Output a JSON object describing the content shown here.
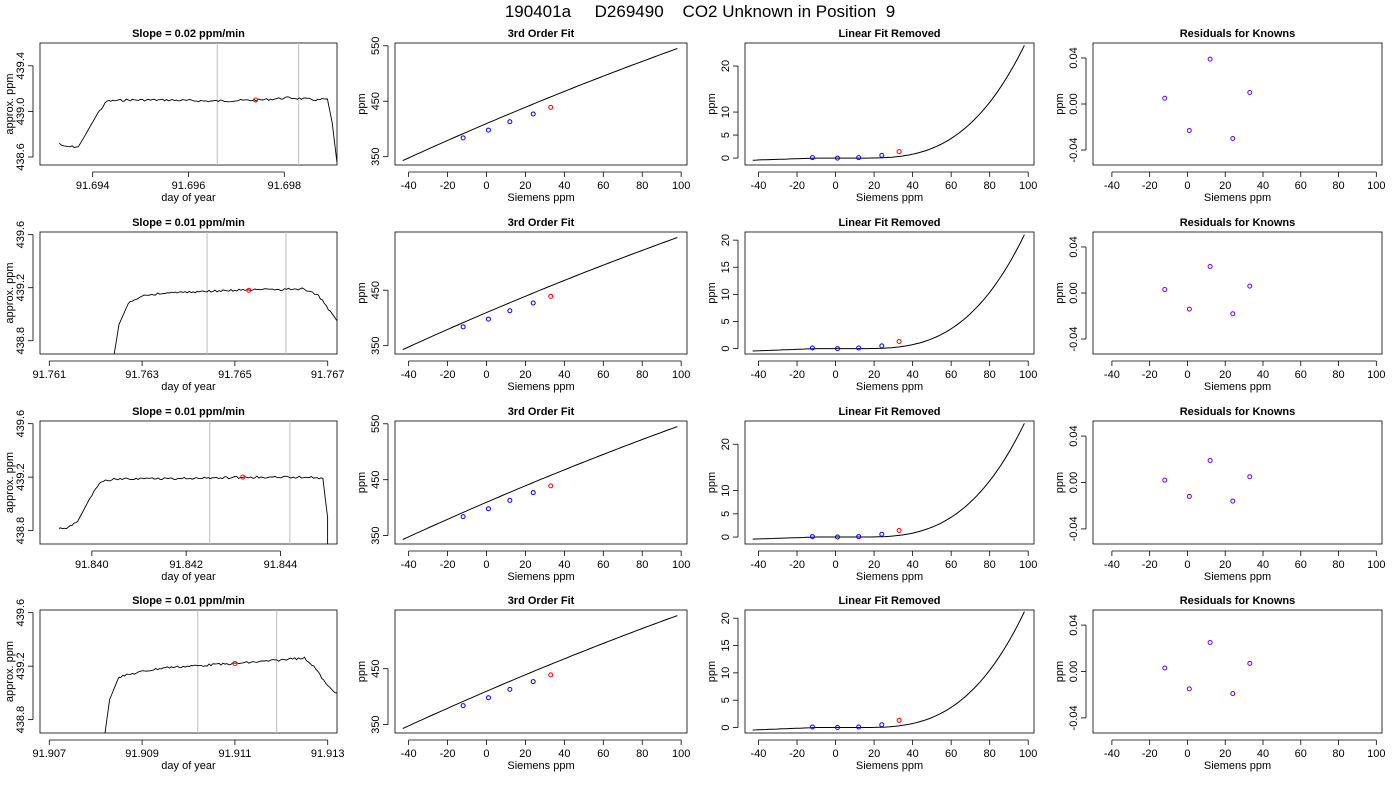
{
  "figure_title": "190401a     D269490    CO2 Unknown in Position  9",
  "colors": {
    "known_point": "#0000ff",
    "unknown_point": "#ff0000",
    "guide_line": "#bebebe",
    "trace": "#000000"
  },
  "chart_data": [
    {
      "panel": "trace",
      "row": 1,
      "type": "line",
      "title": "Slope =  0.02  ppm/min",
      "xlabel": "day of year",
      "ylabel": "approx. ppm",
      "xlim": [
        91.6929,
        91.6991
      ],
      "ylim": [
        438.53,
        439.6
      ],
      "x_ticks": [
        91.694,
        91.696,
        91.698
      ],
      "x_tick_labels": [
        "91.694",
        "91.696",
        "91.698"
      ],
      "y_ticks": [
        438.6,
        439.0,
        439.4
      ],
      "y_tick_labels": [
        "438.6",
        "439.0",
        "439.4"
      ],
      "guide_lines_x": [
        91.6966,
        91.6983
      ],
      "shape": [
        [
          91.6933,
          438.72
        ],
        [
          91.6934,
          438.69
        ],
        [
          91.6937,
          438.69
        ],
        [
          91.6938,
          438.76
        ],
        [
          91.6941,
          438.98
        ],
        [
          91.6943,
          439.09
        ],
        [
          91.6947,
          439.1
        ],
        [
          91.6955,
          439.1
        ],
        [
          91.6965,
          439.09
        ],
        [
          91.6975,
          439.1
        ],
        [
          91.6981,
          439.12
        ],
        [
          91.6987,
          439.1
        ],
        [
          91.6989,
          439.11
        ],
        [
          91.699,
          438.9
        ],
        [
          91.6991,
          438.55
        ]
      ],
      "marker": [
        91.6974,
        439.1
      ]
    },
    {
      "panel": "fit",
      "row": 1,
      "type": "line+scatter",
      "title": "3rd Order Fit",
      "xlabel": "Siemens ppm",
      "ylabel": "ppm",
      "xlim": [
        -47,
        103
      ],
      "ylim": [
        335,
        555
      ],
      "x_ticks": [
        -40,
        -20,
        0,
        20,
        40,
        60,
        80,
        100
      ],
      "x_tick_labels": [
        "-40",
        "-20",
        "0",
        "20",
        "40",
        "60",
        "80",
        "100"
      ],
      "y_ticks": [
        350,
        450,
        550
      ],
      "y_tick_labels": [
        "350",
        "450",
        "550"
      ],
      "curve_x": [
        -43,
        98
      ],
      "curve_y": [
        343,
        545
      ],
      "known_points": [
        [
          -12,
          384
        ],
        [
          1,
          398
        ],
        [
          12,
          413
        ],
        [
          24,
          427
        ]
      ],
      "unknown_point": [
        33,
        439
      ]
    },
    {
      "panel": "linear_removed",
      "row": 1,
      "type": "line+scatter",
      "title": "Linear Fit Removed",
      "xlabel": "Siemens ppm",
      "ylabel": "ppm",
      "xlim": [
        -47,
        103
      ],
      "ylim": [
        -1.5,
        25
      ],
      "x_ticks": [
        -40,
        -20,
        0,
        20,
        40,
        60,
        80,
        100
      ],
      "x_tick_labels": [
        "-40",
        "-20",
        "0",
        "20",
        "40",
        "60",
        "80",
        "100"
      ],
      "y_ticks": [
        0,
        5,
        10,
        20
      ],
      "y_tick_labels": [
        "0",
        "5",
        "10",
        "20"
      ],
      "curve_x": [
        -43,
        98
      ],
      "curve_y_end": 24.5,
      "known_points": [
        [
          -12,
          0.1
        ],
        [
          1,
          0.0
        ],
        [
          12,
          0.1
        ],
        [
          24,
          0.6
        ]
      ],
      "unknown_point": [
        33,
        1.4
      ]
    },
    {
      "panel": "residuals",
      "row": 1,
      "type": "scatter",
      "title": "Residuals for Knowns",
      "xlabel": "Siemens ppm",
      "ylabel": "ppm",
      "xlim": [
        -50,
        103
      ],
      "ylim": [
        -0.053,
        0.053
      ],
      "x_ticks": [
        -40,
        -20,
        0,
        20,
        40,
        60,
        80,
        100
      ],
      "x_tick_labels": [
        "-40",
        "-20",
        "0",
        "20",
        "40",
        "60",
        "80",
        "100"
      ],
      "y_ticks": [
        -0.04,
        0.0,
        0.04
      ],
      "y_tick_labels": [
        "-0.04",
        "0.00",
        "0.04"
      ],
      "points": [
        [
          -12,
          0.005
        ],
        [
          1,
          -0.023
        ],
        [
          12,
          0.039
        ],
        [
          24,
          -0.03
        ],
        [
          33,
          0.01
        ]
      ]
    },
    {
      "panel": "trace",
      "row": 2,
      "type": "line",
      "title": "Slope =  0.01  ppm/min",
      "xlabel": "day of year",
      "ylabel": "approx. ppm",
      "xlim": [
        91.7608,
        91.7672
      ],
      "ylim": [
        438.7,
        439.62
      ],
      "x_ticks": [
        91.761,
        91.763,
        91.765,
        91.767
      ],
      "x_tick_labels": [
        "91.761",
        "91.763",
        "91.765",
        "91.767"
      ],
      "y_ticks": [
        438.8,
        439.2,
        439.6
      ],
      "y_tick_labels": [
        "438.8",
        "439.2",
        "439.6"
      ],
      "guide_lines_x": [
        91.7644,
        91.7661
      ],
      "shape": [
        [
          91.7624,
          438.7
        ],
        [
          91.7625,
          438.92
        ],
        [
          91.7627,
          439.08
        ],
        [
          91.763,
          439.14
        ],
        [
          91.7635,
          439.16
        ],
        [
          91.765,
          439.18
        ],
        [
          91.7665,
          439.19
        ],
        [
          91.7668,
          439.14
        ],
        [
          91.7671,
          439.0
        ],
        [
          91.7672,
          438.95
        ]
      ],
      "marker": [
        91.7653,
        439.18
      ]
    },
    {
      "panel": "fit",
      "row": 2,
      "type": "line+scatter",
      "title": "3rd Order Fit",
      "xlabel": "Siemens ppm",
      "ylabel": "ppm",
      "xlim": [
        -47,
        103
      ],
      "ylim": [
        335,
        555
      ],
      "x_ticks": [
        -40,
        -20,
        0,
        20,
        40,
        60,
        80,
        100
      ],
      "x_tick_labels": [
        "-40",
        "-20",
        "0",
        "20",
        "40",
        "60",
        "80",
        "100"
      ],
      "y_ticks": [
        350,
        450
      ],
      "y_tick_labels": [
        "350",
        "450"
      ],
      "curve_x": [
        -43,
        98
      ],
      "curve_y": [
        343,
        545
      ],
      "known_points": [
        [
          -12,
          384
        ],
        [
          1,
          398
        ],
        [
          12,
          413
        ],
        [
          24,
          427
        ]
      ],
      "unknown_point": [
        33,
        439
      ]
    },
    {
      "panel": "linear_removed",
      "row": 2,
      "type": "line+scatter",
      "title": "Linear Fit Removed",
      "xlabel": "Siemens ppm",
      "ylabel": "ppm",
      "xlim": [
        -47,
        103
      ],
      "ylim": [
        -1,
        21.5
      ],
      "x_ticks": [
        -40,
        -20,
        0,
        20,
        40,
        60,
        80,
        100
      ],
      "x_tick_labels": [
        "-40",
        "-20",
        "0",
        "20",
        "40",
        "60",
        "80",
        "100"
      ],
      "y_ticks": [
        0,
        5,
        10,
        15,
        20
      ],
      "y_tick_labels": [
        "0",
        "5",
        "10",
        "15",
        "20"
      ],
      "curve_x": [
        -43,
        98
      ],
      "curve_y_end": 21.0,
      "known_points": [
        [
          -12,
          0.1
        ],
        [
          1,
          0.0
        ],
        [
          12,
          0.1
        ],
        [
          24,
          0.5
        ]
      ],
      "unknown_point": [
        33,
        1.3
      ]
    },
    {
      "panel": "residuals",
      "row": 2,
      "type": "scatter",
      "title": "Residuals for Knowns",
      "xlabel": "Siemens ppm",
      "ylabel": "ppm",
      "xlim": [
        -50,
        103
      ],
      "ylim": [
        -0.053,
        0.053
      ],
      "x_ticks": [
        -40,
        -20,
        0,
        20,
        40,
        60,
        80,
        100
      ],
      "x_tick_labels": [
        "-40",
        "-20",
        "0",
        "20",
        "40",
        "60",
        "80",
        "100"
      ],
      "y_ticks": [
        -0.04,
        0.0,
        0.04
      ],
      "y_tick_labels": [
        "-0.04",
        "0.00",
        "0.04"
      ],
      "points": [
        [
          -12,
          0.003
        ],
        [
          1,
          -0.014
        ],
        [
          12,
          0.023
        ],
        [
          24,
          -0.018
        ],
        [
          33,
          0.006
        ]
      ]
    },
    {
      "panel": "trace",
      "row": 3,
      "type": "line",
      "title": "Slope =  0.01  ppm/min",
      "xlabel": "day of year",
      "ylabel": "approx. ppm",
      "xlim": [
        91.8389,
        91.8452
      ],
      "ylim": [
        438.7,
        439.62
      ],
      "x_ticks": [
        91.84,
        91.842,
        91.844
      ],
      "x_tick_labels": [
        "91.840",
        "91.842",
        "91.844"
      ],
      "y_ticks": [
        438.8,
        439.2,
        439.6
      ],
      "y_tick_labels": [
        "438.8",
        "439.2",
        "439.6"
      ],
      "guide_lines_x": [
        91.8425,
        91.8442
      ],
      "shape": [
        [
          91.8393,
          438.82
        ],
        [
          91.8395,
          438.82
        ],
        [
          91.8397,
          438.87
        ],
        [
          91.84,
          439.07
        ],
        [
          91.8402,
          439.17
        ],
        [
          91.8406,
          439.19
        ],
        [
          91.842,
          439.19
        ],
        [
          91.8435,
          439.2
        ],
        [
          91.8447,
          439.2
        ],
        [
          91.8449,
          439.19
        ],
        [
          91.845,
          438.9
        ],
        [
          91.845,
          438.7
        ]
      ],
      "marker": [
        91.8432,
        439.2
      ]
    },
    {
      "panel": "fit",
      "row": 3,
      "type": "line+scatter",
      "title": "3rd Order Fit",
      "xlabel": "Siemens ppm",
      "ylabel": "ppm",
      "xlim": [
        -47,
        103
      ],
      "ylim": [
        335,
        555
      ],
      "x_ticks": [
        -40,
        -20,
        0,
        20,
        40,
        60,
        80,
        100
      ],
      "x_tick_labels": [
        "-40",
        "-20",
        "0",
        "20",
        "40",
        "60",
        "80",
        "100"
      ],
      "y_ticks": [
        350,
        450,
        550
      ],
      "y_tick_labels": [
        "350",
        "450",
        "550"
      ],
      "curve_x": [
        -43,
        98
      ],
      "curve_y": [
        343,
        545
      ],
      "known_points": [
        [
          -12,
          384
        ],
        [
          1,
          398
        ],
        [
          12,
          413
        ],
        [
          24,
          427
        ]
      ],
      "unknown_point": [
        33,
        439
      ]
    },
    {
      "panel": "linear_removed",
      "row": 3,
      "type": "line+scatter",
      "title": "Linear Fit Removed",
      "xlabel": "Siemens ppm",
      "ylabel": "ppm",
      "xlim": [
        -47,
        103
      ],
      "ylim": [
        -1.5,
        25
      ],
      "x_ticks": [
        -40,
        -20,
        0,
        20,
        40,
        60,
        80,
        100
      ],
      "x_tick_labels": [
        "-40",
        "-20",
        "0",
        "20",
        "40",
        "60",
        "80",
        "100"
      ],
      "y_ticks": [
        0,
        5,
        10,
        20
      ],
      "y_tick_labels": [
        "0",
        "5",
        "10",
        "20"
      ],
      "curve_x": [
        -43,
        98
      ],
      "curve_y_end": 24.5,
      "known_points": [
        [
          -12,
          0.1
        ],
        [
          1,
          0.0
        ],
        [
          12,
          0.1
        ],
        [
          24,
          0.6
        ]
      ],
      "unknown_point": [
        33,
        1.4
      ]
    },
    {
      "panel": "residuals",
      "row": 3,
      "type": "scatter",
      "title": "Residuals for Knowns",
      "xlabel": "Siemens ppm",
      "ylabel": "ppm",
      "xlim": [
        -50,
        103
      ],
      "ylim": [
        -0.053,
        0.053
      ],
      "x_ticks": [
        -40,
        -20,
        0,
        20,
        40,
        60,
        80,
        100
      ],
      "x_tick_labels": [
        "-40",
        "-20",
        "0",
        "20",
        "40",
        "60",
        "80",
        "100"
      ],
      "y_ticks": [
        -0.04,
        0.0,
        0.04
      ],
      "y_tick_labels": [
        "-0.04",
        "0.00",
        "0.04"
      ],
      "points": [
        [
          -12,
          0.002
        ],
        [
          1,
          -0.012
        ],
        [
          12,
          0.019
        ],
        [
          24,
          -0.016
        ],
        [
          33,
          0.005
        ]
      ]
    },
    {
      "panel": "trace",
      "row": 4,
      "type": "line",
      "title": "Slope =  0.01  ppm/min",
      "xlabel": "day of year",
      "ylabel": "approx. ppm",
      "xlim": [
        91.9068,
        91.9132
      ],
      "ylim": [
        438.7,
        439.62
      ],
      "x_ticks": [
        91.907,
        91.909,
        91.911,
        91.913
      ],
      "x_tick_labels": [
        "91.907",
        "91.909",
        "91.911",
        "91.913"
      ],
      "y_ticks": [
        438.8,
        439.2,
        439.6
      ],
      "y_tick_labels": [
        "438.8",
        "439.2",
        "439.6"
      ],
      "guide_lines_x": [
        91.9102,
        91.9119
      ],
      "shape": [
        [
          91.9082,
          438.7
        ],
        [
          91.9083,
          438.95
        ],
        [
          91.9085,
          439.12
        ],
        [
          91.909,
          439.16
        ],
        [
          91.9095,
          439.19
        ],
        [
          91.911,
          439.22
        ],
        [
          91.9125,
          439.26
        ],
        [
          91.9127,
          439.2
        ],
        [
          91.913,
          439.05
        ],
        [
          91.9132,
          439.0
        ]
      ],
      "marker": [
        91.911,
        439.22
      ]
    },
    {
      "panel": "fit",
      "row": 4,
      "type": "line+scatter",
      "title": "3rd Order Fit",
      "xlabel": "Siemens ppm",
      "ylabel": "ppm",
      "xlim": [
        -47,
        103
      ],
      "ylim": [
        335,
        555
      ],
      "x_ticks": [
        -40,
        -20,
        0,
        20,
        40,
        60,
        80,
        100
      ],
      "x_tick_labels": [
        "-40",
        "-20",
        "0",
        "20",
        "40",
        "60",
        "80",
        "100"
      ],
      "y_ticks": [
        350,
        450
      ],
      "y_tick_labels": [
        "350",
        "450"
      ],
      "curve_x": [
        -43,
        98
      ],
      "curve_y": [
        343,
        545
      ],
      "known_points": [
        [
          -12,
          384
        ],
        [
          1,
          398
        ],
        [
          12,
          413
        ],
        [
          24,
          427
        ]
      ],
      "unknown_point": [
        33,
        439
      ]
    },
    {
      "panel": "linear_removed",
      "row": 4,
      "type": "line+scatter",
      "title": "Linear Fit Removed",
      "xlabel": "Siemens ppm",
      "ylabel": "ppm",
      "xlim": [
        -47,
        103
      ],
      "ylim": [
        -1,
        21.5
      ],
      "x_ticks": [
        -40,
        -20,
        0,
        20,
        40,
        60,
        80,
        100
      ],
      "x_tick_labels": [
        "-40",
        "-20",
        "0",
        "20",
        "40",
        "60",
        "80",
        "100"
      ],
      "y_ticks": [
        0,
        5,
        10,
        15,
        20
      ],
      "y_tick_labels": [
        "0",
        "5",
        "10",
        "15",
        "20"
      ],
      "curve_x": [
        -43,
        98
      ],
      "curve_y_end": 21.2,
      "known_points": [
        [
          -12,
          0.1
        ],
        [
          1,
          0.0
        ],
        [
          12,
          0.1
        ],
        [
          24,
          0.5
        ]
      ],
      "unknown_point": [
        33,
        1.3
      ]
    },
    {
      "panel": "residuals",
      "row": 4,
      "type": "scatter",
      "title": "Residuals for Knowns",
      "xlabel": "Siemens ppm",
      "ylabel": "ppm",
      "xlim": [
        -50,
        103
      ],
      "ylim": [
        -0.053,
        0.053
      ],
      "x_ticks": [
        -40,
        -20,
        0,
        20,
        40,
        60,
        80,
        100
      ],
      "x_tick_labels": [
        "-40",
        "-20",
        "0",
        "20",
        "40",
        "60",
        "80",
        "100"
      ],
      "y_ticks": [
        -0.04,
        0.0,
        0.04
      ],
      "y_tick_labels": [
        "-0.04",
        "0.00",
        "0.04"
      ],
      "points": [
        [
          -12,
          0.003
        ],
        [
          1,
          -0.015
        ],
        [
          12,
          0.025
        ],
        [
          24,
          -0.019
        ],
        [
          33,
          0.007
        ]
      ]
    }
  ]
}
